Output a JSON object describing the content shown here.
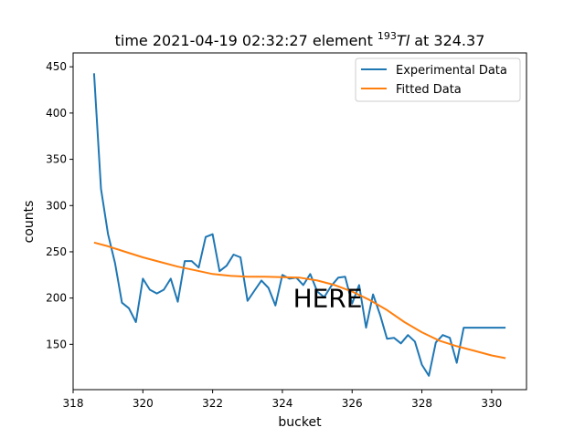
{
  "chart_data": {
    "type": "line",
    "title": {
      "prefix": "time 2021-04-19 02:32:27 element ",
      "isotope_mass": "193",
      "isotope_symbol": "Tl",
      "suffix": " at 324.37"
    },
    "xlabel": "bucket",
    "ylabel": "counts",
    "xlim": [
      318,
      331
    ],
    "ylim": [
      101,
      465
    ],
    "xticks": [
      318,
      320,
      322,
      324,
      326,
      328,
      330
    ],
    "yticks": [
      150,
      200,
      250,
      300,
      350,
      400,
      450
    ],
    "grid": false,
    "legend_position": "top-right",
    "annotation": {
      "text": "HERE",
      "x": 325.3,
      "y": 200,
      "color": "#ff0000"
    },
    "series": [
      {
        "name": "Experimental Data",
        "color": "#1f77b4",
        "x": [
          318.6,
          318.8,
          319.0,
          319.2,
          319.4,
          319.6,
          319.8,
          320.0,
          320.2,
          320.4,
          320.6,
          320.8,
          321.0,
          321.2,
          321.4,
          321.6,
          321.8,
          322.0,
          322.2,
          322.4,
          322.6,
          322.8,
          323.0,
          323.2,
          323.4,
          323.6,
          323.8,
          324.0,
          324.2,
          324.4,
          324.6,
          324.8,
          325.0,
          325.2,
          325.4,
          325.6,
          325.8,
          326.0,
          326.2,
          326.4,
          326.6,
          326.8,
          327.0,
          327.2,
          327.4,
          327.6,
          327.8,
          328.0,
          328.2,
          328.4,
          328.6,
          328.8,
          329.0,
          329.2,
          329.4,
          329.6,
          329.8,
          330.0,
          330.2,
          330.4
        ],
        "y": [
          443,
          318,
          269,
          238,
          195,
          189,
          174,
          221,
          209,
          205,
          209,
          221,
          196,
          240,
          240,
          233,
          266,
          269,
          229,
          235,
          247,
          244,
          197,
          208,
          219,
          211,
          192,
          225,
          221,
          222,
          214,
          226,
          207,
          201,
          213,
          222,
          223,
          194,
          214,
          168,
          204,
          182,
          156,
          157,
          151,
          160,
          153,
          128,
          116,
          152,
          160,
          157,
          130,
          168,
          168,
          168,
          168,
          168,
          168,
          168
        ]
      },
      {
        "name": "Fitted Data",
        "color": "#ff7f0e",
        "x": [
          318.6,
          319.0,
          319.5,
          320.0,
          320.5,
          321.0,
          321.5,
          322.0,
          322.5,
          323.0,
          323.5,
          324.0,
          324.5,
          325.0,
          325.5,
          326.0,
          326.5,
          327.0,
          327.5,
          328.0,
          328.5,
          329.0,
          329.5,
          330.0,
          330.4
        ],
        "y": [
          260,
          256,
          250,
          244,
          239,
          234,
          230,
          226,
          224,
          223,
          223,
          222.5,
          222,
          219,
          214,
          207,
          198,
          187,
          174,
          163,
          154,
          148,
          143,
          138,
          135
        ]
      }
    ]
  }
}
